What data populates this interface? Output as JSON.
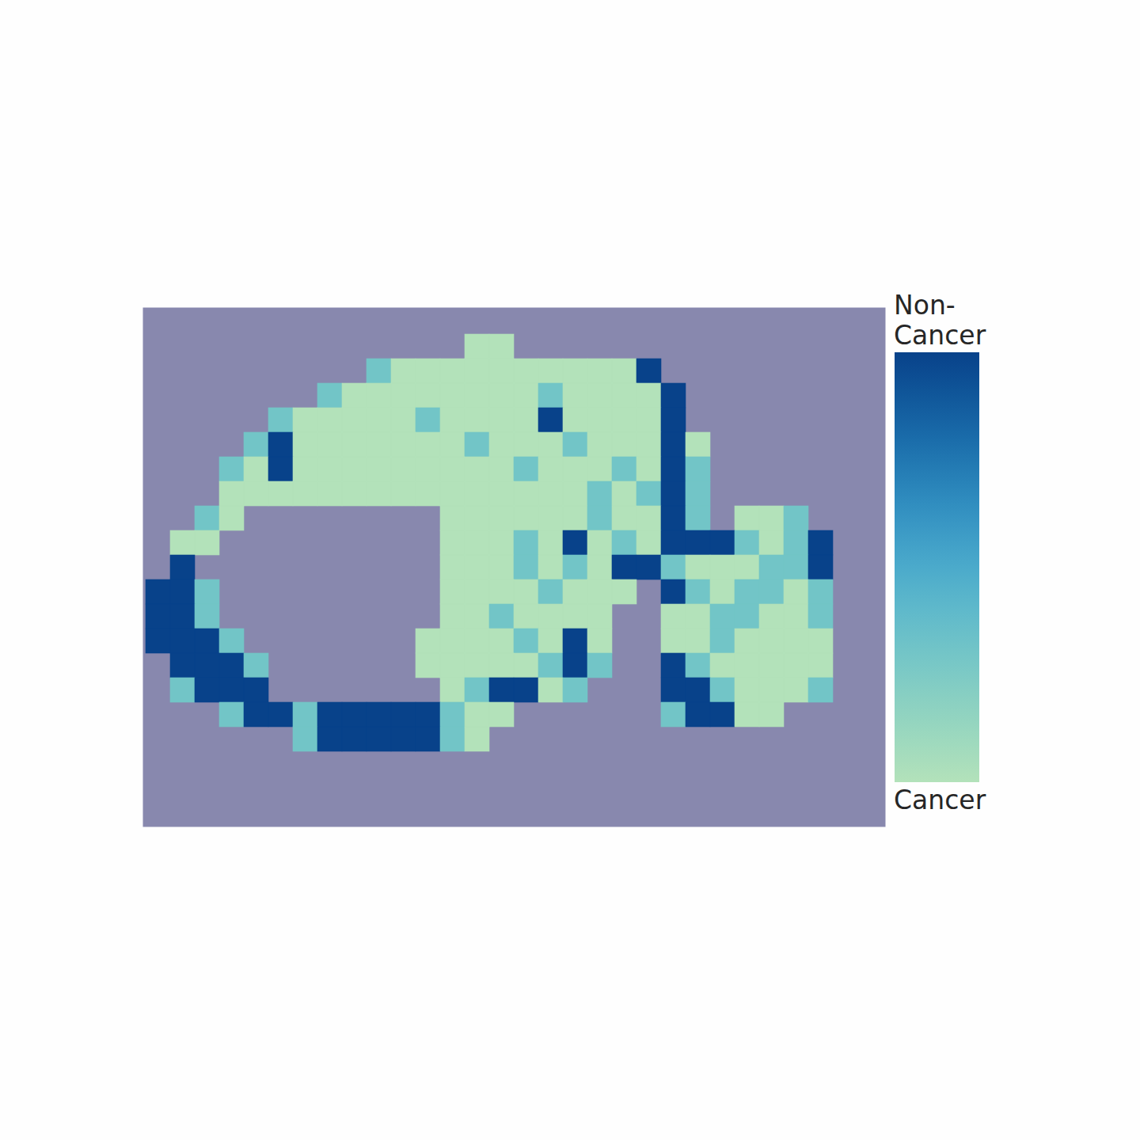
{
  "chart_data": {
    "type": "heatmap",
    "tick_labels": false,
    "colorbar": {
      "range": [
        0,
        1
      ],
      "label_high": "Non-Cancer",
      "label_low": "Cancer"
    },
    "cells": [
      [
        null,
        null,
        null,
        null,
        null,
        null,
        null,
        null,
        null,
        null,
        null,
        null,
        null,
        null,
        null,
        null,
        null,
        null,
        null,
        null,
        null,
        null,
        null,
        null,
        null,
        null,
        null,
        null,
        null,
        null
      ],
      [
        null,
        null,
        null,
        null,
        null,
        null,
        null,
        null,
        null,
        null,
        null,
        null,
        null,
        0,
        0,
        null,
        null,
        null,
        null,
        null,
        null,
        null,
        null,
        null,
        null,
        null,
        null,
        null,
        null,
        null
      ],
      [
        null,
        null,
        null,
        null,
        null,
        null,
        null,
        null,
        null,
        0.3,
        0,
        0,
        0,
        0,
        0,
        0,
        0,
        0,
        0,
        0,
        1,
        null,
        null,
        null,
        null,
        null,
        null,
        null,
        null,
        null
      ],
      [
        null,
        null,
        null,
        null,
        null,
        null,
        null,
        0.3,
        0,
        0,
        0,
        0,
        0,
        0,
        0,
        0,
        0.3,
        0,
        0,
        0,
        0,
        1,
        null,
        null,
        null,
        null,
        null,
        null,
        null,
        null
      ],
      [
        null,
        null,
        null,
        null,
        null,
        0.3,
        0,
        0,
        0,
        0,
        0,
        0.3,
        0,
        0,
        0,
        0,
        1,
        0,
        0,
        0,
        0,
        1,
        null,
        null,
        null,
        null,
        null,
        null,
        null,
        null
      ],
      [
        null,
        null,
        null,
        null,
        0.3,
        1,
        0,
        0,
        0,
        0,
        0,
        0,
        0,
        0.3,
        0,
        0,
        0,
        0.3,
        0,
        0,
        0,
        1,
        0,
        null,
        null,
        null,
        null,
        null,
        null,
        null
      ],
      [
        null,
        null,
        null,
        0.3,
        0,
        1,
        0,
        0,
        0,
        0,
        0,
        0,
        0,
        0,
        0,
        0.3,
        0,
        0,
        0,
        0.3,
        0,
        1,
        0.3,
        null,
        null,
        null,
        null,
        null,
        null,
        null
      ],
      [
        null,
        null,
        null,
        0,
        0,
        0,
        0,
        0,
        0,
        0,
        0,
        0,
        0,
        0,
        0,
        0,
        0,
        0,
        0.3,
        0,
        0.3,
        1,
        0.3,
        null,
        null,
        null,
        null,
        null,
        null,
        null
      ],
      [
        null,
        null,
        0.3,
        0,
        null,
        null,
        null,
        null,
        null,
        null,
        null,
        null,
        0,
        0,
        0,
        0,
        0,
        0,
        0.3,
        0,
        0,
        1,
        0.3,
        null,
        0,
        0,
        0.3,
        null,
        null,
        null
      ],
      [
        null,
        0,
        0,
        null,
        null,
        null,
        null,
        null,
        null,
        null,
        null,
        null,
        0,
        0,
        0,
        0.3,
        0,
        1,
        0,
        0.3,
        0,
        1,
        1,
        1,
        0.3,
        0,
        0.3,
        1,
        null,
        null
      ],
      [
        null,
        1,
        null,
        null,
        null,
        null,
        null,
        null,
        null,
        null,
        null,
        null,
        0,
        0,
        0,
        0.3,
        0,
        0.3,
        0,
        1,
        1,
        0.3,
        0,
        0,
        0,
        0.3,
        0.3,
        1,
        null,
        null
      ],
      [
        1,
        1,
        0.3,
        null,
        null,
        null,
        null,
        null,
        null,
        null,
        null,
        null,
        0,
        0,
        0,
        0,
        0.3,
        0,
        0,
        0,
        null,
        1,
        0.3,
        0,
        0.3,
        0.3,
        0,
        0.3,
        null,
        null
      ],
      [
        1,
        1,
        0.3,
        null,
        null,
        null,
        null,
        null,
        null,
        null,
        null,
        null,
        0,
        0,
        0.3,
        0,
        0,
        0,
        0,
        null,
        null,
        0,
        0,
        0.3,
        0.3,
        0,
        0,
        0.3,
        null,
        null
      ],
      [
        1,
        1,
        1,
        0.3,
        null,
        null,
        null,
        null,
        null,
        null,
        null,
        0,
        0,
        0,
        0,
        0.3,
        0,
        1,
        0,
        null,
        null,
        0,
        0,
        0.3,
        0,
        0,
        0,
        0,
        null,
        null
      ],
      [
        null,
        1,
        1,
        1,
        0.3,
        null,
        null,
        null,
        null,
        null,
        null,
        0,
        0,
        0,
        0,
        0,
        0.3,
        1,
        0.3,
        null,
        null,
        1,
        0.3,
        0,
        0,
        0,
        0,
        0,
        null,
        null
      ],
      [
        null,
        0.3,
        1,
        1,
        1,
        null,
        null,
        null,
        null,
        null,
        null,
        null,
        0,
        0.3,
        1,
        1,
        0,
        0.3,
        null,
        null,
        null,
        1,
        1,
        0.3,
        0,
        0,
        0,
        0.3,
        null,
        null
      ],
      [
        null,
        null,
        null,
        0.3,
        1,
        1,
        0.3,
        1,
        1,
        1,
        1,
        1,
        0.3,
        0,
        0,
        null,
        null,
        null,
        null,
        null,
        null,
        0.3,
        1,
        1,
        0,
        0,
        null,
        null,
        null,
        null
      ],
      [
        null,
        null,
        null,
        null,
        null,
        null,
        0.3,
        1,
        1,
        1,
        1,
        1,
        0.3,
        0,
        null,
        null,
        null,
        null,
        null,
        null,
        null,
        null,
        null,
        null,
        null,
        null,
        null,
        null,
        null,
        null
      ],
      [
        null,
        null,
        null,
        null,
        null,
        null,
        null,
        null,
        null,
        null,
        null,
        null,
        null,
        null,
        null,
        null,
        null,
        null,
        null,
        null,
        null,
        null,
        null,
        null,
        null,
        null,
        null,
        null,
        null,
        null
      ],
      [
        null,
        null,
        null,
        null,
        null,
        null,
        null,
        null,
        null,
        null,
        null,
        null,
        null,
        null,
        null,
        null,
        null,
        null,
        null,
        null,
        null,
        null,
        null,
        null,
        null,
        null,
        null,
        null,
        null,
        null
      ],
      [
        null,
        null,
        null,
        null,
        null,
        null,
        null,
        null,
        null,
        null,
        null,
        null,
        null,
        null,
        null,
        null,
        null,
        null,
        null,
        null,
        null,
        null,
        null,
        null,
        null,
        null,
        null,
        null,
        null,
        null
      ]
    ]
  }
}
